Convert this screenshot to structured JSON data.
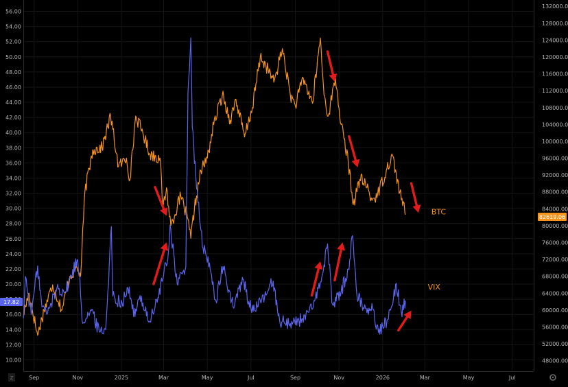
{
  "chart_data": {
    "type": "line",
    "grid": true,
    "left_axis": {
      "ylim": [
        8.5,
        57.5
      ],
      "ticks": [
        "10.00",
        "12.00",
        "14.00",
        "16.00",
        "18.00",
        "20.00",
        "22.00",
        "24.00",
        "26.00",
        "28.00",
        "30.00",
        "32.00",
        "34.00",
        "36.00",
        "38.00",
        "40.00",
        "42.00",
        "44.00",
        "46.00",
        "48.00",
        "50.00",
        "52.00",
        "54.00",
        "56.00"
      ],
      "current_value_label": "17.82",
      "current_value": 17.82,
      "label_color": "#5b66f0"
    },
    "right_axis": {
      "ylim": [
        45500,
        133500
      ],
      "ticks": [
        "48000.00",
        "52000.00",
        "56000.00",
        "60000.00",
        "64000.00",
        "68000.00",
        "72000.00",
        "76000.00",
        "80000.00",
        "84000.00",
        "88000.00",
        "92000.00",
        "96000.00",
        "100000.00",
        "104000.00",
        "108000.00",
        "112000.00",
        "116000.00",
        "120000.00",
        "124000.00",
        "128000.00",
        "132000.00"
      ],
      "current_value_label": "82619.06",
      "current_value": 82619.06,
      "label_color": "#f7931a"
    },
    "x_axis": {
      "range": [
        "2024-08-17",
        "2026-07-31"
      ],
      "ticks": [
        {
          "label": "Sep",
          "date": "2024-09-01"
        },
        {
          "label": "Nov",
          "date": "2024-11-01"
        },
        {
          "label": "2025",
          "date": "2025-01-01"
        },
        {
          "label": "Mar",
          "date": "2025-03-01"
        },
        {
          "label": "May",
          "date": "2025-05-01"
        },
        {
          "label": "Jul",
          "date": "2025-07-01"
        },
        {
          "label": "Sep",
          "date": "2025-09-01"
        },
        {
          "label": "Nov",
          "date": "2025-11-01"
        },
        {
          "label": "2026",
          "date": "2026-01-01"
        },
        {
          "label": "Mar",
          "date": "2026-03-01"
        },
        {
          "label": "May",
          "date": "2026-05-01"
        },
        {
          "label": "Jul",
          "date": "2026-07-01"
        }
      ]
    },
    "series": [
      {
        "name": "BTC",
        "axis": "right",
        "color": "#f7931a",
        "points": [
          [
            "2024-08-17",
            59000
          ],
          [
            "2024-08-25",
            64000
          ],
          [
            "2024-09-06",
            54000
          ],
          [
            "2024-09-15",
            60000
          ],
          [
            "2024-09-27",
            66000
          ],
          [
            "2024-10-10",
            60000
          ],
          [
            "2024-10-21",
            68000
          ],
          [
            "2024-10-31",
            70000
          ],
          [
            "2024-11-05",
            68000
          ],
          [
            "2024-11-11",
            88000
          ],
          [
            "2024-11-22",
            98000
          ],
          [
            "2024-12-05",
            98500
          ],
          [
            "2024-12-17",
            106000
          ],
          [
            "2024-12-28",
            94000
          ],
          [
            "2025-01-08",
            96000
          ],
          [
            "2025-01-13",
            91000
          ],
          [
            "2025-01-21",
            106000
          ],
          [
            "2025-01-31",
            102000
          ],
          [
            "2025-02-10",
            97000
          ],
          [
            "2025-02-24",
            96000
          ],
          [
            "2025-02-28",
            84000
          ],
          [
            "2025-03-05",
            89000
          ],
          [
            "2025-03-11",
            80000
          ],
          [
            "2025-03-25",
            87000
          ],
          [
            "2025-04-03",
            82000
          ],
          [
            "2025-04-08",
            77000
          ],
          [
            "2025-04-13",
            84000
          ],
          [
            "2025-04-22",
            93000
          ],
          [
            "2025-05-01",
            96000
          ],
          [
            "2025-05-10",
            104000
          ],
          [
            "2025-05-22",
            111000
          ],
          [
            "2025-06-02",
            105000
          ],
          [
            "2025-06-10",
            110000
          ],
          [
            "2025-06-22",
            101000
          ],
          [
            "2025-07-03",
            108000
          ],
          [
            "2025-07-14",
            120000
          ],
          [
            "2025-07-25",
            117000
          ],
          [
            "2025-08-02",
            114000
          ],
          [
            "2025-08-14",
            122000
          ],
          [
            "2025-08-25",
            111000
          ],
          [
            "2025-09-01",
            108500
          ],
          [
            "2025-09-12",
            115000
          ],
          [
            "2025-09-25",
            109000
          ],
          [
            "2025-10-06",
            124500
          ],
          [
            "2025-10-11",
            111000
          ],
          [
            "2025-10-17",
            106000
          ],
          [
            "2025-10-27",
            115000
          ],
          [
            "2025-11-04",
            104000
          ],
          [
            "2025-11-14",
            95000
          ],
          [
            "2025-11-21",
            85000
          ],
          [
            "2025-11-30",
            91000
          ],
          [
            "2025-12-08",
            90000
          ],
          [
            "2025-12-17",
            86000
          ],
          [
            "2025-12-25",
            87500
          ],
          [
            "2026-01-06",
            93000
          ],
          [
            "2026-01-14",
            97000
          ],
          [
            "2026-01-25",
            88000
          ],
          [
            "2026-02-02",
            82619.06
          ]
        ]
      },
      {
        "name": "VIX",
        "axis": "left",
        "color": "#5b66f0",
        "points": [
          [
            "2024-08-17",
            15.5
          ],
          [
            "2024-08-20",
            21.0
          ],
          [
            "2024-08-28",
            16.0
          ],
          [
            "2024-09-06",
            22.4
          ],
          [
            "2024-09-12",
            17.0
          ],
          [
            "2024-09-20",
            16.2
          ],
          [
            "2024-10-03",
            19.5
          ],
          [
            "2024-10-15",
            19.0
          ],
          [
            "2024-10-31",
            23.2
          ],
          [
            "2024-11-04",
            21.0
          ],
          [
            "2024-11-07",
            15.2
          ],
          [
            "2024-11-20",
            16.5
          ],
          [
            "2024-12-01",
            13.8
          ],
          [
            "2024-12-10",
            14.0
          ],
          [
            "2024-12-18",
            27.6
          ],
          [
            "2024-12-20",
            18.4
          ],
          [
            "2025-01-02",
            17.5
          ],
          [
            "2025-01-10",
            19.5
          ],
          [
            "2025-01-20",
            15.7
          ],
          [
            "2025-01-27",
            18.5
          ],
          [
            "2025-02-10",
            15.0
          ],
          [
            "2025-02-21",
            18.2
          ],
          [
            "2025-03-07",
            23.5
          ],
          [
            "2025-03-10",
            27.8
          ],
          [
            "2025-03-20",
            20.0
          ],
          [
            "2025-04-01",
            22.3
          ],
          [
            "2025-04-04",
            45.3
          ],
          [
            "2025-04-08",
            52.5
          ],
          [
            "2025-04-10",
            40.7
          ],
          [
            "2025-04-16",
            32.6
          ],
          [
            "2025-04-25",
            24.8
          ],
          [
            "2025-05-05",
            22.0
          ],
          [
            "2025-05-13",
            17.8
          ],
          [
            "2025-05-23",
            22.3
          ],
          [
            "2025-06-06",
            17.0
          ],
          [
            "2025-06-20",
            20.6
          ],
          [
            "2025-07-01",
            16.7
          ],
          [
            "2025-07-15",
            17.5
          ],
          [
            "2025-08-01",
            20.4
          ],
          [
            "2025-08-10",
            15.2
          ],
          [
            "2025-08-25",
            14.8
          ],
          [
            "2025-09-10",
            15.4
          ],
          [
            "2025-09-25",
            16.7
          ],
          [
            "2025-10-10",
            21.7
          ],
          [
            "2025-10-16",
            25.3
          ],
          [
            "2025-10-23",
            17.3
          ],
          [
            "2025-11-04",
            19.0
          ],
          [
            "2025-11-14",
            22.0
          ],
          [
            "2025-11-20",
            26.4
          ],
          [
            "2025-11-26",
            18.5
          ],
          [
            "2025-12-08",
            16.8
          ],
          [
            "2025-12-18",
            16.7
          ],
          [
            "2025-12-26",
            13.6
          ],
          [
            "2026-01-08",
            15.3
          ],
          [
            "2026-01-20",
            20.1
          ],
          [
            "2026-01-27",
            16.3
          ],
          [
            "2026-02-02",
            17.82
          ]
        ]
      }
    ],
    "annotations": [
      {
        "text": "BTC",
        "color": "#f7931a",
        "date": "2026-03-10",
        "value_left": 29.2
      },
      {
        "text": "VIX",
        "color": "#f7931a",
        "date": "2026-03-05",
        "value_left": 19.3
      }
    ],
    "arrows": [
      {
        "name": "arrow-down-feb-2025",
        "from": [
          "2025-02-17",
          32.8
        ],
        "to": [
          "2025-03-05",
          29.0
        ]
      },
      {
        "name": "arrow-up-mar-2025",
        "from": [
          "2025-02-15",
          20.0
        ],
        "to": [
          "2025-03-05",
          25.5
        ]
      },
      {
        "name": "arrow-down-oct-2025",
        "from": [
          "2025-10-16",
          50.7
        ],
        "to": [
          "2025-10-26",
          46.7
        ]
      },
      {
        "name": "arrow-down-nov-2025",
        "from": [
          "2025-11-15",
          39.5
        ],
        "to": [
          "2025-11-27",
          35.4
        ]
      },
      {
        "name": "arrow-down-feb-2026",
        "from": [
          "2026-02-10",
          33.3
        ],
        "to": [
          "2026-02-20",
          29.4
        ]
      },
      {
        "name": "arrow-up-sep-2025",
        "from": [
          "2025-09-24",
          18.5
        ],
        "to": [
          "2025-10-06",
          23.0
        ]
      },
      {
        "name": "arrow-up-oct-2025",
        "from": [
          "2025-10-26",
          20.5
        ],
        "to": [
          "2025-11-06",
          25.5
        ]
      },
      {
        "name": "arrow-up-jan-2026",
        "from": [
          "2026-01-23",
          13.9
        ],
        "to": [
          "2026-02-10",
          16.5
        ]
      }
    ],
    "corner_icons": {
      "left": "Z",
      "right": "gear-icon"
    }
  }
}
